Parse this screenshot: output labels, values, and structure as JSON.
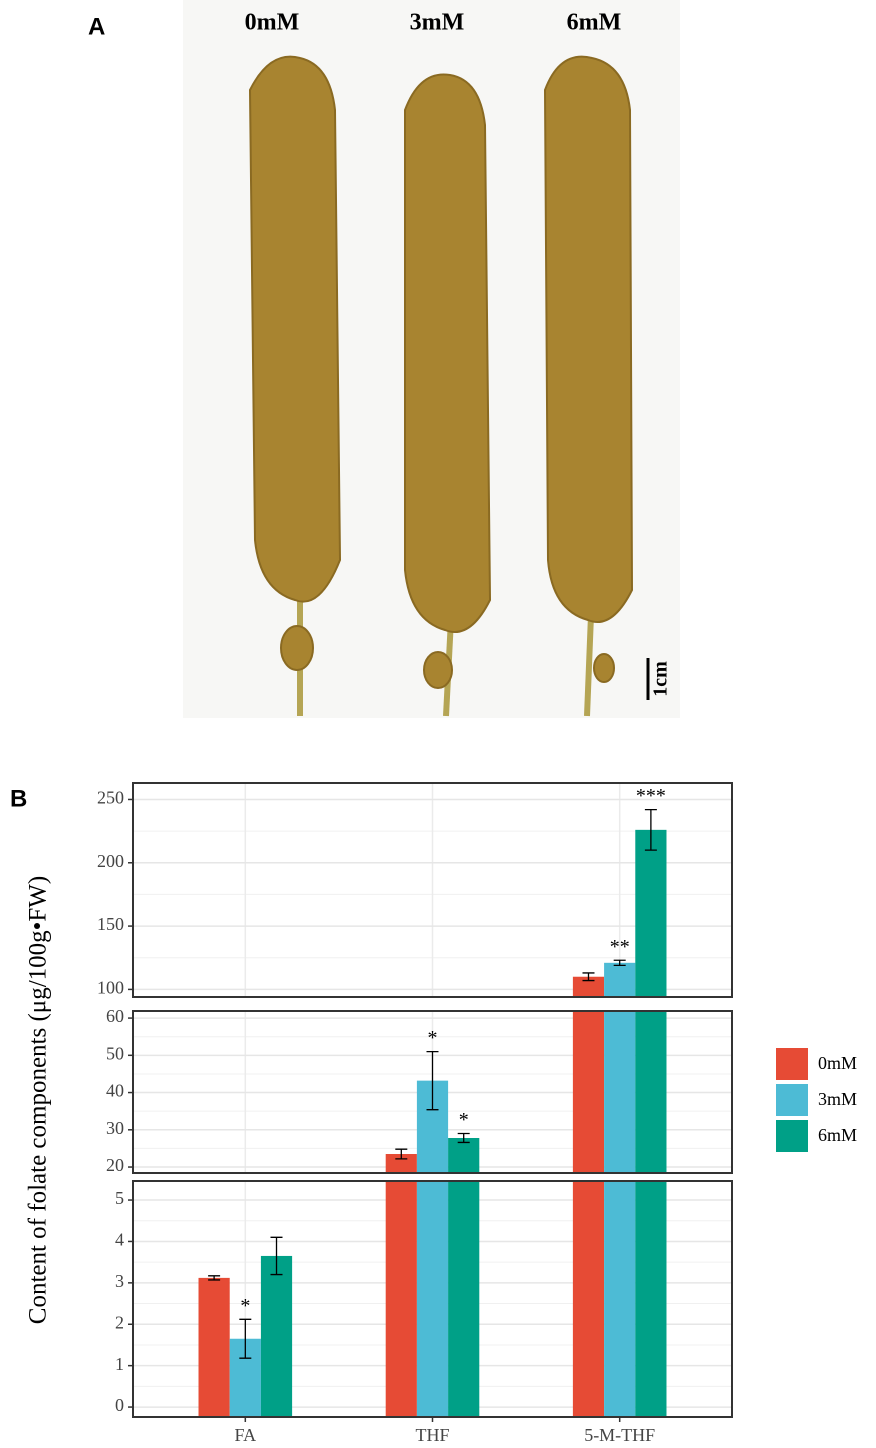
{
  "panel_a": {
    "label": "A",
    "treatments": [
      "0mM",
      "3mM",
      "6mM"
    ],
    "scale_bar": "1cm"
  },
  "chart_data": {
    "type": "bar",
    "panel_label": "B",
    "ylabel": "Content of folate components (μg/100g•FW)",
    "categories": [
      "FA",
      "THF",
      "5-M-THF"
    ],
    "series": [
      {
        "name": "0mM",
        "color": "#e64b35",
        "values": [
          3.12,
          23.5,
          110
        ],
        "errors": [
          0.05,
          1.3,
          3
        ],
        "significance": [
          null,
          null,
          null
        ]
      },
      {
        "name": "3mM",
        "color": "#4dbbd5",
        "values": [
          1.65,
          43.2,
          121
        ],
        "errors": [
          0.47,
          7.8,
          2
        ],
        "significance": [
          "*",
          "*",
          "**"
        ]
      },
      {
        "name": "6mM",
        "color": "#00a087",
        "values": [
          3.65,
          27.8,
          226
        ],
        "errors": [
          0.45,
          1.2,
          16
        ],
        "significance": [
          null,
          "*",
          "***"
        ]
      }
    ],
    "panels": [
      {
        "ylim": [
          94,
          263
        ],
        "yticks": [
          100,
          150,
          200,
          250
        ]
      },
      {
        "ylim": [
          18.4,
          61.9
        ],
        "yticks": [
          20,
          30,
          40,
          50,
          60
        ]
      },
      {
        "ylim": [
          -0.24,
          5.46
        ],
        "yticks": [
          0,
          1,
          2,
          3,
          4,
          5
        ]
      }
    ],
    "grid": true,
    "legend": "right"
  }
}
